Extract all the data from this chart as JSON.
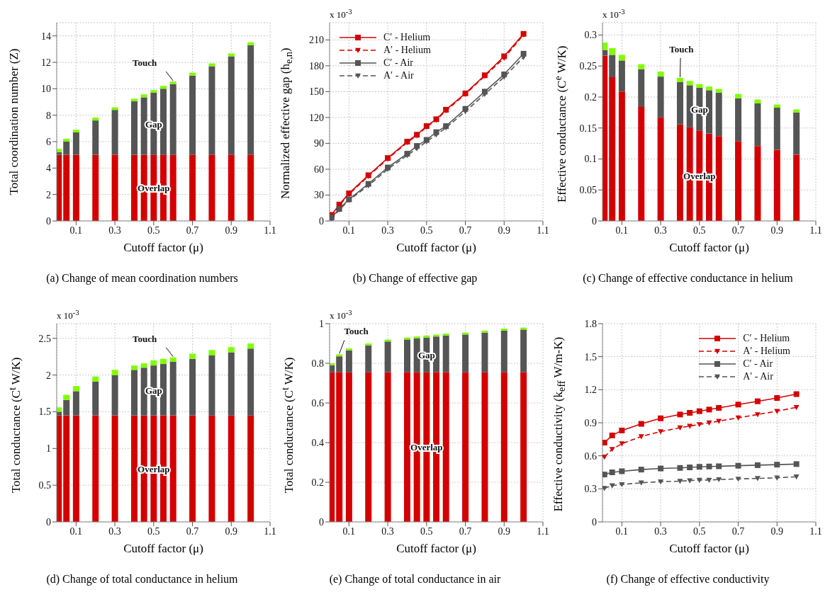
{
  "chart_data": [
    {
      "type": "bar",
      "stacked": true,
      "title": "(a) Change of mean coordination numbers",
      "xlabel": "Cutoff factor (μ)",
      "ylabel": "Total coordination number (Z)",
      "x": [
        0.01,
        0.05,
        0.1,
        0.2,
        0.3,
        0.4,
        0.45,
        0.5,
        0.55,
        0.6,
        0.7,
        0.8,
        0.9,
        1.0
      ],
      "xlim": [
        0,
        1.1
      ],
      "xticks": [
        0.1,
        0.3,
        0.5,
        0.7,
        0.9,
        1.1
      ],
      "ylim": [
        0,
        15
      ],
      "yticks": [
        0,
        2,
        4,
        6,
        8,
        10,
        12,
        14
      ],
      "grid": true,
      "series": [
        {
          "name": "Overlap",
          "color": "#d40000",
          "values": [
            5,
            5,
            5,
            5,
            5,
            5,
            5,
            5,
            5,
            5,
            5,
            5,
            5,
            5
          ]
        },
        {
          "name": "Gap",
          "color": "#555555",
          "values": [
            0.2,
            1.0,
            1.7,
            2.6,
            3.4,
            4.05,
            4.35,
            4.7,
            5.0,
            5.35,
            6.0,
            6.7,
            7.45,
            8.3
          ]
        },
        {
          "name": "Touch",
          "color": "#80ff00",
          "values": [
            0.25,
            0.22,
            0.2,
            0.22,
            0.2,
            0.2,
            0.23,
            0.2,
            0.22,
            0.2,
            0.22,
            0.22,
            0.22,
            0.22
          ]
        }
      ]
    },
    {
      "type": "line",
      "title": "(b) Change of effective gap",
      "xlabel": "Cutoff factor (μ)",
      "ylabel": "Normalized effective gap (h$_{e,n}$)",
      "annotations": [
        "x 10$^{-3}$"
      ],
      "x": [
        0.01,
        0.05,
        0.1,
        0.2,
        0.3,
        0.4,
        0.45,
        0.5,
        0.55,
        0.6,
        0.7,
        0.8,
        0.9,
        1.0
      ],
      "xlim": [
        0,
        1.1
      ],
      "xticks": [
        0.1,
        0.3,
        0.5,
        0.7,
        0.9,
        1.1
      ],
      "ylim": [
        0,
        230
      ],
      "yticks": [
        0,
        30,
        60,
        90,
        120,
        150,
        180,
        210
      ],
      "grid": true,
      "legend": "top left",
      "series": [
        {
          "name": "C′ - Helium",
          "color": "#d40000",
          "marker": "square",
          "line_style": "solid",
          "values": [
            7,
            19,
            32,
            53,
            73,
            92,
            100,
            110,
            118,
            129,
            148,
            169,
            191,
            217
          ]
        },
        {
          "name": "A′ - Helium",
          "color": "#d40000",
          "marker": "triangle",
          "line_style": "dashed",
          "values": [
            5,
            18,
            31,
            52,
            72,
            91,
            99,
            109,
            117,
            128,
            147,
            168,
            189,
            216
          ]
        },
        {
          "name": "C′ - Air",
          "color": "#555555",
          "marker": "square",
          "line_style": "solid",
          "values": [
            4,
            14,
            25,
            43,
            62,
            78,
            87,
            94,
            103,
            110,
            130,
            150,
            170,
            194
          ]
        },
        {
          "name": "A′ - Air",
          "color": "#555555",
          "marker": "triangle",
          "line_style": "dashed",
          "values": [
            2,
            13,
            24,
            41,
            60,
            76,
            84,
            92,
            100,
            108,
            127,
            147,
            167,
            190
          ]
        }
      ]
    },
    {
      "type": "bar",
      "stacked": true,
      "title": "(c) Change of effective conductance in helium",
      "xlabel": "Cutoff factor (μ)",
      "ylabel": "Effective conductance (C$^{e}$ W/K)",
      "annotations": [
        "x 10$^{-3}$"
      ],
      "x": [
        0.01,
        0.05,
        0.1,
        0.2,
        0.3,
        0.4,
        0.45,
        0.5,
        0.55,
        0.6,
        0.7,
        0.8,
        0.9,
        1.0
      ],
      "xlim": [
        0,
        1.1
      ],
      "xticks": [
        0.1,
        0.3,
        0.5,
        0.7,
        0.9,
        1.1
      ],
      "ylim": [
        0,
        0.32
      ],
      "yticks": [
        0,
        0.05,
        0.1,
        0.15,
        0.2,
        0.25,
        0.3
      ],
      "grid": true,
      "series": [
        {
          "name": "Overlap",
          "color": "#d40000",
          "values": [
            0.267,
            0.232,
            0.209,
            0.184,
            0.167,
            0.156,
            0.151,
            0.146,
            0.141,
            0.137,
            0.129,
            0.121,
            0.115,
            0.107
          ]
        },
        {
          "name": "Gap",
          "color": "#555555",
          "values": [
            0.009,
            0.036,
            0.05,
            0.061,
            0.066,
            0.068,
            0.068,
            0.069,
            0.07,
            0.07,
            0.069,
            0.069,
            0.068,
            0.068
          ]
        },
        {
          "name": "Touch",
          "color": "#80ff00",
          "values": [
            0.012,
            0.011,
            0.009,
            0.008,
            0.008,
            0.007,
            0.007,
            0.006,
            0.006,
            0.006,
            0.007,
            0.006,
            0.005,
            0.005
          ]
        }
      ]
    },
    {
      "type": "bar",
      "stacked": true,
      "title": "(d) Change of total conductance in helium",
      "xlabel": "Cutoff factor (μ)",
      "ylabel": "Total conductance (C$^{t}$ W/K)",
      "annotations": [
        "x 10$^{-3}$"
      ],
      "x": [
        0.01,
        0.05,
        0.1,
        0.2,
        0.3,
        0.4,
        0.45,
        0.5,
        0.55,
        0.6,
        0.7,
        0.8,
        0.9,
        1.0
      ],
      "xlim": [
        0,
        1.1
      ],
      "xticks": [
        0.1,
        0.3,
        0.5,
        0.7,
        0.9,
        1.1
      ],
      "ylim": [
        0,
        2.7
      ],
      "yticks": [
        0,
        0.5,
        1,
        1.5,
        2,
        2.5
      ],
      "grid": true,
      "series": [
        {
          "name": "Overlap",
          "color": "#d40000",
          "values": [
            1.45,
            1.45,
            1.45,
            1.45,
            1.45,
            1.45,
            1.45,
            1.45,
            1.45,
            1.45,
            1.45,
            1.45,
            1.45,
            1.45
          ]
        },
        {
          "name": "Gap",
          "color": "#555555",
          "values": [
            0.05,
            0.21,
            0.33,
            0.46,
            0.55,
            0.62,
            0.65,
            0.68,
            0.7,
            0.73,
            0.77,
            0.82,
            0.86,
            0.91
          ]
        },
        {
          "name": "Touch",
          "color": "#80ff00",
          "values": [
            0.06,
            0.07,
            0.07,
            0.07,
            0.07,
            0.06,
            0.06,
            0.07,
            0.07,
            0.06,
            0.07,
            0.07,
            0.07,
            0.07
          ]
        }
      ]
    },
    {
      "type": "bar",
      "stacked": true,
      "title": "(e) Change of total conductance in air",
      "xlabel": "Cutoff factor (μ)",
      "ylabel": "Total conductance (C$^{t}$ W/K)",
      "annotations": [
        "x 10$^{-3}$"
      ],
      "x": [
        0.01,
        0.05,
        0.1,
        0.2,
        0.3,
        0.4,
        0.45,
        0.5,
        0.55,
        0.6,
        0.7,
        0.8,
        0.9,
        1.0
      ],
      "xlim": [
        0,
        1.1
      ],
      "xticks": [
        0.1,
        0.3,
        0.5,
        0.7,
        0.9,
        1.1
      ],
      "ylim": [
        0,
        1
      ],
      "yticks": [
        0,
        0.2,
        0.4,
        0.6,
        0.8,
        1
      ],
      "grid": true,
      "series": [
        {
          "name": "Overlap",
          "color": "#d40000",
          "values": [
            0.755,
            0.755,
            0.755,
            0.755,
            0.755,
            0.755,
            0.755,
            0.755,
            0.755,
            0.755,
            0.755,
            0.755,
            0.755,
            0.755
          ]
        },
        {
          "name": "Gap",
          "color": "#555555",
          "values": [
            0.035,
            0.08,
            0.11,
            0.135,
            0.155,
            0.165,
            0.17,
            0.175,
            0.18,
            0.185,
            0.19,
            0.2,
            0.21,
            0.215
          ]
        },
        {
          "name": "Touch",
          "color": "#80ff00",
          "values": [
            0.01,
            0.01,
            0.01,
            0.01,
            0.01,
            0.01,
            0.01,
            0.01,
            0.01,
            0.01,
            0.01,
            0.01,
            0.01,
            0.01
          ]
        }
      ]
    },
    {
      "type": "line",
      "title": "(f) Change of effective conductivity",
      "xlabel": "Cutoff factor (μ)",
      "ylabel": "Effective conductivity (k$_{eff}$ W/m-K)",
      "x": [
        0.01,
        0.05,
        0.1,
        0.2,
        0.3,
        0.4,
        0.45,
        0.5,
        0.55,
        0.6,
        0.7,
        0.8,
        0.9,
        1.0
      ],
      "xlim": [
        0,
        1.1
      ],
      "xticks": [
        0.1,
        0.3,
        0.5,
        0.7,
        0.9,
        1.1
      ],
      "ylim": [
        0,
        1.8
      ],
      "yticks": [
        0,
        0.3,
        0.6,
        0.9,
        1.2,
        1.5,
        1.8
      ],
      "grid": true,
      "legend": "top right",
      "series": [
        {
          "name": "C′ - Helium",
          "color": "#d40000",
          "marker": "square",
          "line_style": "solid",
          "values": [
            0.72,
            0.785,
            0.83,
            0.89,
            0.94,
            0.975,
            0.99,
            1.005,
            1.02,
            1.035,
            1.065,
            1.095,
            1.125,
            1.16
          ]
        },
        {
          "name": "A′ - Helium",
          "color": "#d40000",
          "marker": "triangle",
          "line_style": "dashed",
          "values": [
            0.59,
            0.66,
            0.71,
            0.775,
            0.82,
            0.855,
            0.87,
            0.885,
            0.9,
            0.915,
            0.945,
            0.975,
            1.005,
            1.04
          ]
        },
        {
          "name": "C′ - Air",
          "color": "#555555",
          "marker": "square",
          "line_style": "solid",
          "values": [
            0.43,
            0.45,
            0.46,
            0.475,
            0.485,
            0.49,
            0.495,
            0.5,
            0.503,
            0.505,
            0.51,
            0.515,
            0.52,
            0.525
          ]
        },
        {
          "name": "A′ - Air",
          "color": "#555555",
          "marker": "triangle",
          "line_style": "dashed",
          "values": [
            0.305,
            0.33,
            0.34,
            0.355,
            0.365,
            0.37,
            0.375,
            0.38,
            0.38,
            0.385,
            0.39,
            0.395,
            0.4,
            0.41
          ]
        }
      ]
    }
  ]
}
